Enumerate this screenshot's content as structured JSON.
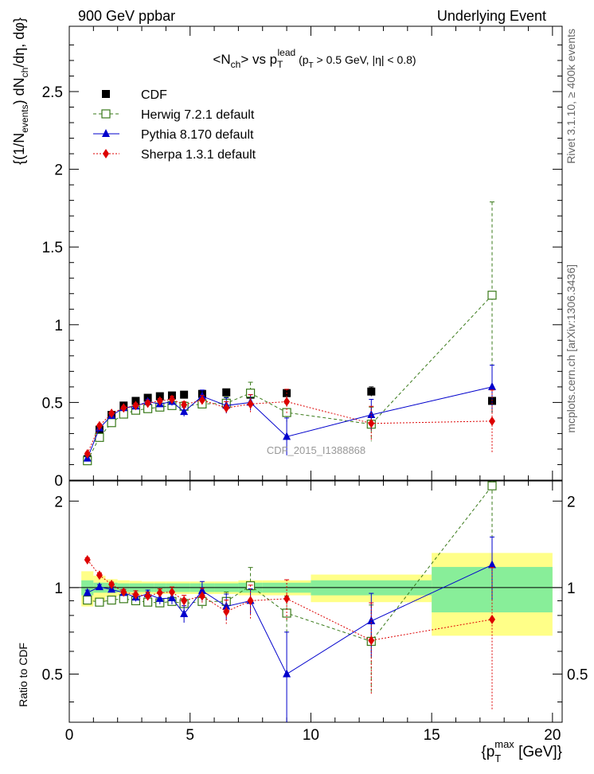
{
  "header": {
    "left": "900 GeV ppbar",
    "right": "Underlying Event"
  },
  "side_labels": {
    "rivet": "Rivet 3.1.10, ≥ 400k events",
    "mcplots": "mcplots.cern.ch [arXiv:1306.3436]"
  },
  "watermark": "CDF_2015_I1388868",
  "chart_data": {
    "type": "scatter",
    "title": {
      "main": "<N",
      "main_sub": "ch",
      "main_rest": "> vs p",
      "p_sub": "T",
      "p_sup": "lead",
      "cut": " (p",
      "cut_sub": "T",
      "cut_rest": " > 0.5 GeV, |η| < 0.8)"
    },
    "ylabel_parts": [
      "{(1/N",
      "events",
      ") dN",
      "ch",
      "/dη, dφ}"
    ],
    "ratio_ylabel": "Ratio to CDF",
    "xlabel": {
      "pre": "{p",
      "sub": "T",
      "sup": "max",
      "post": " [GeV]}"
    },
    "x_range": [
      0,
      20.4
    ],
    "upper_y_range": [
      0,
      2.92
    ],
    "ratio_y_range": [
      0.34,
      2.35
    ],
    "upper_y_ticks": [
      {
        "v": 0,
        "label": "0"
      },
      {
        "v": 0.5,
        "label": "0.5"
      },
      {
        "v": 1,
        "label": "1"
      },
      {
        "v": 1.5,
        "label": "1.5"
      },
      {
        "v": 2,
        "label": "2"
      },
      {
        "v": 2.5,
        "label": "2.5"
      }
    ],
    "ratio_y_ticks": [
      {
        "v": 0.5,
        "label": "0.5"
      },
      {
        "v": 1,
        "label": "1"
      },
      {
        "v": 2,
        "label": "2"
      }
    ],
    "x_ticks": [
      {
        "v": 0,
        "label": "0"
      },
      {
        "v": 5,
        "label": "5"
      },
      {
        "v": 10,
        "label": "10"
      },
      {
        "v": 15,
        "label": "15"
      },
      {
        "v": 20,
        "label": "20"
      }
    ],
    "bins": [
      {
        "lo": 0.5,
        "hi": 1.0,
        "inner": 0.06,
        "outer": 0.14
      },
      {
        "lo": 1.0,
        "hi": 1.5,
        "inner": 0.04,
        "outer": 0.1
      },
      {
        "lo": 1.5,
        "hi": 2.0,
        "inner": 0.04,
        "outer": 0.07
      },
      {
        "lo": 2.0,
        "hi": 2.5,
        "inner": 0.035,
        "outer": 0.06
      },
      {
        "lo": 2.5,
        "hi": 3.0,
        "inner": 0.035,
        "outer": 0.055
      },
      {
        "lo": 3.0,
        "hi": 3.5,
        "inner": 0.035,
        "outer": 0.05
      },
      {
        "lo": 3.5,
        "hi": 4.0,
        "inner": 0.035,
        "outer": 0.05
      },
      {
        "lo": 4.0,
        "hi": 4.5,
        "inner": 0.035,
        "outer": 0.05
      },
      {
        "lo": 4.5,
        "hi": 5.0,
        "inner": 0.035,
        "outer": 0.05
      },
      {
        "lo": 5.0,
        "hi": 6.0,
        "inner": 0.035,
        "outer": 0.05
      },
      {
        "lo": 6.0,
        "hi": 7.0,
        "inner": 0.035,
        "outer": 0.05
      },
      {
        "lo": 7.0,
        "hi": 8.0,
        "inner": 0.04,
        "outer": 0.06
      },
      {
        "lo": 8.0,
        "hi": 10.0,
        "inner": 0.04,
        "outer": 0.06
      },
      {
        "lo": 10.0,
        "hi": 15.0,
        "inner": 0.06,
        "outer": 0.11
      },
      {
        "lo": 15.0,
        "hi": 20.0,
        "inner": 0.18,
        "outer": 0.32
      }
    ],
    "series": [
      {
        "name": "CDF",
        "marker": "square-filled",
        "color": "#000000",
        "linestyle": "none",
        "x": [
          0.75,
          1.25,
          1.75,
          2.25,
          2.75,
          3.25,
          3.75,
          4.25,
          4.75,
          5.5,
          6.5,
          7.5,
          9.0,
          12.5,
          17.5
        ],
        "y": [
          0.135,
          0.325,
          0.42,
          0.48,
          0.51,
          0.53,
          0.54,
          0.545,
          0.55,
          0.555,
          0.565,
          0.55,
          0.56,
          0.57,
          0.51
        ],
        "err": [
          0.01,
          0.01,
          0.01,
          0.01,
          0.01,
          0.01,
          0.01,
          0.01,
          0.01,
          0.01,
          0.01,
          0.02,
          0.02,
          0.03,
          0.08
        ],
        "ratio": [
          1,
          1,
          1,
          1,
          1,
          1,
          1,
          1,
          1,
          1,
          1,
          1,
          1,
          1,
          1
        ],
        "ratio_err": [
          0,
          0,
          0,
          0,
          0,
          0,
          0,
          0,
          0,
          0,
          0,
          0,
          0,
          0,
          0
        ]
      },
      {
        "name": "Herwig 7.2.1 default",
        "marker": "square-open",
        "color": "#3a7a1a",
        "linestyle": "dashed",
        "x": [
          0.75,
          1.25,
          1.75,
          2.25,
          2.75,
          3.25,
          3.75,
          4.25,
          4.75,
          5.5,
          6.5,
          7.5,
          9.0,
          12.5,
          17.5
        ],
        "y": [
          0.125,
          0.275,
          0.37,
          0.425,
          0.45,
          0.46,
          0.47,
          0.48,
          0.475,
          0.49,
          0.495,
          0.56,
          0.435,
          0.36,
          1.19
        ],
        "err": [
          0.01,
          0.01,
          0.01,
          0.01,
          0.01,
          0.01,
          0.01,
          0.015,
          0.02,
          0.03,
          0.04,
          0.07,
          0.06,
          0.11,
          0.6
        ],
        "ratio": [
          0.905,
          0.89,
          0.905,
          0.915,
          0.9,
          0.89,
          0.885,
          0.895,
          0.88,
          0.895,
          0.895,
          1.015,
          0.815,
          0.65,
          2.26
        ],
        "ratio_err": [
          0.03,
          0.02,
          0.02,
          0.02,
          0.02,
          0.02,
          0.02,
          0.03,
          0.035,
          0.05,
          0.07,
          0.16,
          0.12,
          0.22,
          1.3
        ]
      },
      {
        "name": "Pythia 8.170 default",
        "marker": "triangle-filled",
        "color": "#0000cc",
        "linestyle": "solid",
        "x": [
          0.75,
          1.25,
          1.75,
          2.25,
          2.75,
          3.25,
          3.75,
          4.25,
          4.75,
          5.5,
          6.5,
          7.5,
          9.0,
          12.5,
          17.5
        ],
        "y": [
          0.14,
          0.335,
          0.415,
          0.465,
          0.475,
          0.505,
          0.49,
          0.505,
          0.44,
          0.54,
          0.48,
          0.5,
          0.28,
          0.42,
          0.6
        ],
        "err": [
          0.01,
          0.01,
          0.01,
          0.01,
          0.015,
          0.015,
          0.02,
          0.025,
          0.03,
          0.04,
          0.05,
          0.05,
          0.12,
          0.1,
          0.14
        ],
        "ratio": [
          0.96,
          1.005,
          0.985,
          0.96,
          0.925,
          0.95,
          0.915,
          0.92,
          0.81,
          0.975,
          0.86,
          0.9,
          0.5,
          0.765,
          1.2
        ],
        "ratio_err": [
          0.02,
          0.02,
          0.02,
          0.025,
          0.03,
          0.03,
          0.04,
          0.045,
          0.055,
          0.075,
          0.09,
          0.09,
          0.2,
          0.19,
          0.3
        ]
      },
      {
        "name": "Sherpa 1.3.1 default",
        "marker": "diamond-filled",
        "color": "#dd0000",
        "linestyle": "dotted",
        "x": [
          0.75,
          1.25,
          1.75,
          2.25,
          2.75,
          3.25,
          3.75,
          4.25,
          4.75,
          5.5,
          6.5,
          7.5,
          9.0,
          12.5,
          17.5
        ],
        "y": [
          0.17,
          0.35,
          0.43,
          0.465,
          0.48,
          0.495,
          0.51,
          0.52,
          0.485,
          0.515,
          0.465,
          0.49,
          0.505,
          0.365,
          0.38
        ],
        "err": [
          0.01,
          0.01,
          0.01,
          0.01,
          0.015,
          0.015,
          0.015,
          0.02,
          0.02,
          0.03,
          0.04,
          0.06,
          0.08,
          0.11,
          0.2
        ],
        "ratio": [
          1.25,
          1.105,
          1.025,
          0.965,
          0.945,
          0.935,
          0.96,
          0.965,
          0.9,
          0.935,
          0.825,
          0.9,
          0.915,
          0.655,
          0.775
        ],
        "ratio_err": [
          0.02,
          0.02,
          0.02,
          0.02,
          0.03,
          0.03,
          0.03,
          0.04,
          0.04,
          0.06,
          0.08,
          0.12,
          0.15,
          0.23,
          0.4
        ]
      }
    ]
  }
}
